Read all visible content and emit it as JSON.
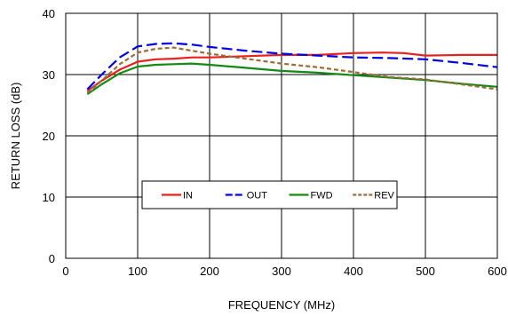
{
  "chart_data": {
    "type": "line",
    "title": "",
    "xlabel": "FREQUENCY (MHz)",
    "ylabel": "RETURN LOSS (dB)",
    "xlim": [
      0,
      600
    ],
    "ylim": [
      0,
      40
    ],
    "xticks": [
      0,
      100,
      200,
      300,
      400,
      500,
      600
    ],
    "yticks": [
      0,
      10,
      20,
      30,
      40
    ],
    "grid": true,
    "legend_position": "center-left",
    "series": [
      {
        "name": "IN",
        "color": "#e8201e",
        "dash": "solid",
        "x": [
          30,
          50,
          75,
          100,
          125,
          150,
          175,
          200,
          250,
          300,
          350,
          400,
          440,
          470,
          500,
          550,
          600
        ],
        "y": [
          27.3,
          29.0,
          30.8,
          32.1,
          32.5,
          32.6,
          32.8,
          32.8,
          33.0,
          33.2,
          33.2,
          33.5,
          33.6,
          33.5,
          33.1,
          33.2,
          33.2
        ]
      },
      {
        "name": "OUT",
        "color": "#0000e6",
        "dash": "long-dash",
        "x": [
          30,
          50,
          75,
          100,
          125,
          150,
          175,
          200,
          250,
          300,
          350,
          400,
          450,
          500,
          550,
          600
        ],
        "y": [
          27.6,
          30.0,
          32.8,
          34.6,
          35.0,
          35.1,
          34.9,
          34.5,
          33.9,
          33.4,
          33.1,
          32.8,
          32.7,
          32.5,
          31.9,
          31.2
        ]
      },
      {
        "name": "FWD",
        "color": "#138a13",
        "dash": "solid",
        "x": [
          30,
          50,
          75,
          100,
          125,
          150,
          175,
          200,
          250,
          300,
          350,
          400,
          450,
          500,
          550,
          600
        ],
        "y": [
          26.8,
          28.4,
          30.2,
          31.3,
          31.6,
          31.7,
          31.8,
          31.6,
          31.1,
          30.6,
          30.3,
          29.9,
          29.5,
          29.1,
          28.5,
          28.0
        ]
      },
      {
        "name": "REV",
        "color": "#9c6b3a",
        "dash": "short-dash",
        "x": [
          30,
          50,
          75,
          100,
          125,
          150,
          175,
          200,
          250,
          300,
          350,
          400,
          450,
          500,
          550,
          600
        ],
        "y": [
          27.0,
          29.0,
          31.7,
          33.6,
          34.2,
          34.4,
          33.9,
          33.4,
          32.6,
          31.8,
          31.2,
          30.4,
          29.6,
          29.2,
          28.4,
          27.6
        ]
      }
    ]
  }
}
